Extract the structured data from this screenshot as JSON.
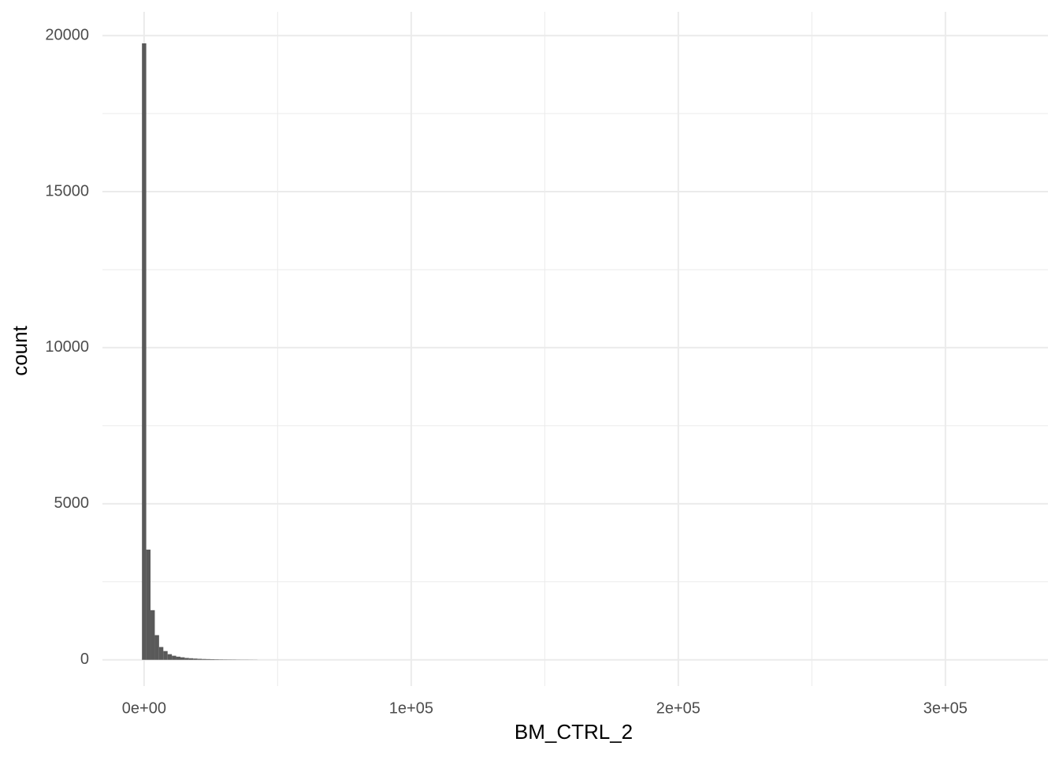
{
  "chart_data": {
    "type": "histogram",
    "x_label": "BM_CTRL_2",
    "y_label": "count",
    "bins": [
      -800,
      800,
      2400,
      4000,
      5600,
      7200,
      8800,
      10400,
      12000,
      13600,
      15200,
      16800,
      18400,
      20000,
      21600,
      23200,
      24800,
      26400,
      28000,
      29600,
      31200,
      32800,
      34400,
      36000,
      37600,
      39200,
      40800,
      42400
    ],
    "values": [
      19750,
      3530,
      1590,
      790,
      410,
      280,
      180,
      130,
      100,
      80,
      60,
      50,
      40,
      32,
      26,
      22,
      18,
      15,
      12,
      10,
      9,
      8,
      6,
      5,
      5,
      4,
      3
    ],
    "color": "#595959",
    "xlim": [
      -15600,
      338400
    ],
    "ylim": [
      -840,
      20760
    ],
    "xticks": [
      {
        "value": 0,
        "label": "0e+00"
      },
      {
        "value": 100000,
        "label": "1e+05"
      },
      {
        "value": 200000,
        "label": "2e+05"
      },
      {
        "value": 300000,
        "label": "3e+05"
      }
    ],
    "yticks": [
      0,
      5000,
      10000,
      15000,
      20000
    ],
    "x_minor_ticks": [
      50000,
      150000,
      250000
    ],
    "y_minor_ticks": [
      2500,
      7500,
      12500,
      17500
    ],
    "grid": true
  }
}
